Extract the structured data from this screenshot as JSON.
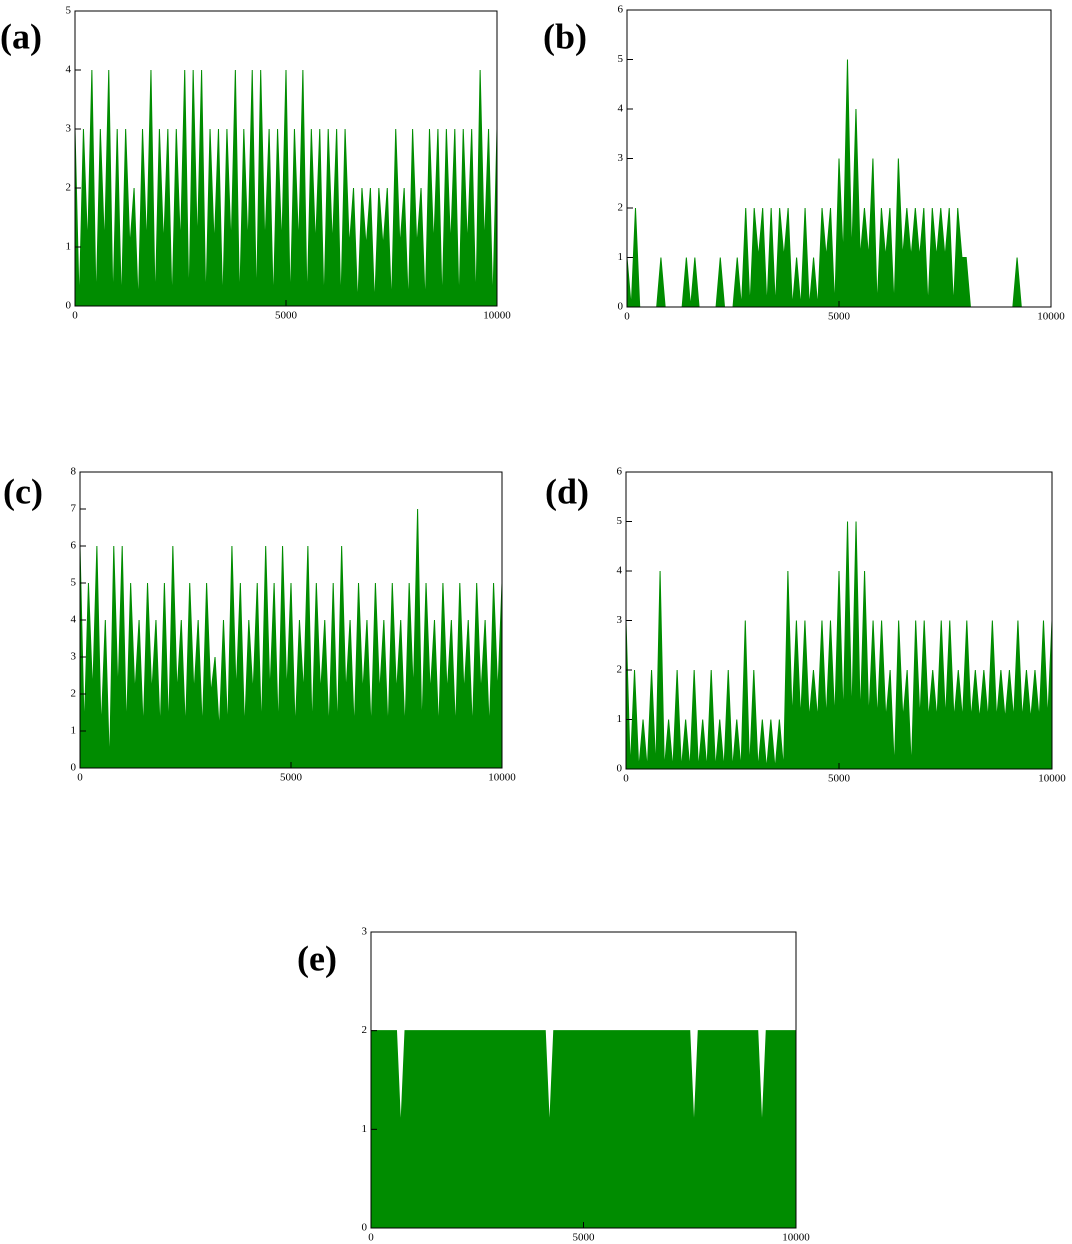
{
  "chart_data": [
    {
      "type": "line",
      "title": "(a)",
      "color": "#008c00",
      "x": [
        0,
        100,
        200,
        300,
        400,
        500,
        600,
        700,
        800,
        900,
        1000,
        1100,
        1200,
        1300,
        1400,
        1500,
        1600,
        1700,
        1800,
        1900,
        2000,
        2100,
        2200,
        2300,
        2400,
        2500,
        2600,
        2700,
        2800,
        2900,
        3000,
        3100,
        3200,
        3300,
        3400,
        3500,
        3600,
        3700,
        3800,
        3900,
        4000,
        4100,
        4200,
        4300,
        4400,
        4500,
        4600,
        4700,
        4800,
        4900,
        5000,
        5100,
        5200,
        5300,
        5400,
        5500,
        5600,
        5700,
        5800,
        5900,
        6000,
        6100,
        6200,
        6300,
        6400,
        6500,
        6600,
        6700,
        6800,
        6900,
        7000,
        7100,
        7200,
        7300,
        7400,
        7500,
        7600,
        7700,
        7800,
        7900,
        8000,
        8100,
        8200,
        8300,
        8400,
        8500,
        8600,
        8700,
        8800,
        8900,
        9000,
        9100,
        9200,
        9300,
        9400,
        9500,
        9600,
        9700,
        9800,
        9900,
        10000
      ],
      "values": [
        3,
        0,
        3,
        1,
        4,
        0,
        3,
        1,
        4,
        0,
        3,
        0,
        3,
        1,
        2,
        0,
        3,
        1,
        4,
        0,
        3,
        1,
        3,
        0,
        3,
        1,
        4,
        0,
        4,
        1,
        4,
        0,
        3,
        1,
        3,
        0,
        3,
        1,
        4,
        0,
        3,
        1,
        4,
        0,
        4,
        1,
        3,
        0,
        3,
        1,
        4,
        0,
        3,
        1,
        4,
        0,
        3,
        1,
        3,
        0,
        3,
        1,
        3,
        0,
        3,
        1,
        2,
        0,
        2,
        1,
        2,
        0,
        2,
        1,
        2,
        0,
        3,
        1,
        2,
        0,
        3,
        1,
        2,
        0,
        3,
        1,
        3,
        0,
        3,
        1,
        3,
        0,
        3,
        1,
        3,
        0,
        4,
        1,
        3,
        0,
        3
      ],
      "xlim": [
        0,
        10000
      ],
      "ylim": [
        0,
        5
      ],
      "xticks": [
        0,
        5000,
        10000
      ],
      "yticks": [
        0,
        1,
        2,
        3,
        4,
        5
      ]
    },
    {
      "type": "line",
      "title": "(b)",
      "color": "#008c00",
      "x": [
        0,
        100,
        200,
        300,
        400,
        500,
        600,
        700,
        800,
        900,
        1000,
        1100,
        1200,
        1300,
        1400,
        1500,
        1600,
        1700,
        1800,
        1900,
        2000,
        2100,
        2200,
        2300,
        2400,
        2500,
        2600,
        2700,
        2800,
        2900,
        3000,
        3100,
        3200,
        3300,
        3400,
        3500,
        3600,
        3700,
        3800,
        3900,
        4000,
        4100,
        4200,
        4300,
        4400,
        4500,
        4600,
        4700,
        4800,
        4900,
        5000,
        5100,
        5200,
        5300,
        5400,
        5500,
        5600,
        5700,
        5800,
        5900,
        6000,
        6100,
        6200,
        6300,
        6400,
        6500,
        6600,
        6700,
        6800,
        6900,
        7000,
        7100,
        7200,
        7300,
        7400,
        7500,
        7600,
        7700,
        7800,
        7900,
        8000,
        8100,
        8200,
        8300,
        8400,
        8500,
        8600,
        8700,
        8800,
        8900,
        9000,
        9100,
        9200,
        9300,
        9400,
        9500,
        9600,
        9700,
        9800,
        9900,
        10000
      ],
      "values": [
        1,
        0,
        2,
        0,
        0,
        0,
        0,
        0,
        1,
        0,
        0,
        0,
        0,
        0,
        1,
        0,
        1,
        0,
        0,
        0,
        0,
        0,
        1,
        0,
        0,
        0,
        1,
        0,
        2,
        0,
        2,
        1,
        2,
        0,
        2,
        0,
        2,
        1,
        2,
        0,
        1,
        0,
        2,
        0,
        1,
        0,
        2,
        1,
        2,
        0,
        3,
        1,
        5,
        1,
        4,
        1,
        2,
        1,
        3,
        0,
        2,
        1,
        2,
        0,
        3,
        1,
        2,
        1,
        2,
        1,
        2,
        0,
        2,
        1,
        2,
        1,
        2,
        0,
        2,
        1,
        1,
        0,
        0,
        0,
        0,
        0,
        0,
        0,
        0,
        0,
        0,
        0,
        1,
        0,
        0,
        0,
        0,
        0,
        0,
        0,
        0
      ],
      "xlim": [
        0,
        10000
      ],
      "ylim": [
        0,
        6
      ],
      "xticks": [
        0,
        5000,
        10000
      ],
      "yticks": [
        0,
        1,
        2,
        3,
        4,
        5,
        6
      ]
    },
    {
      "type": "line",
      "title": "(c)",
      "color": "#008c00",
      "x": [
        0,
        100,
        200,
        300,
        400,
        500,
        600,
        700,
        800,
        900,
        1000,
        1100,
        1200,
        1300,
        1400,
        1500,
        1600,
        1700,
        1800,
        1900,
        2000,
        2100,
        2200,
        2300,
        2400,
        2500,
        2600,
        2700,
        2800,
        2900,
        3000,
        3100,
        3200,
        3300,
        3400,
        3500,
        3600,
        3700,
        3800,
        3900,
        4000,
        4100,
        4200,
        4300,
        4400,
        4500,
        4600,
        4700,
        4800,
        4900,
        5000,
        5100,
        5200,
        5300,
        5400,
        5500,
        5600,
        5700,
        5800,
        5900,
        6000,
        6100,
        6200,
        6300,
        6400,
        6500,
        6600,
        6700,
        6800,
        6900,
        7000,
        7100,
        7200,
        7300,
        7400,
        7500,
        7600,
        7700,
        7800,
        7900,
        8000,
        8100,
        8200,
        8300,
        8400,
        8500,
        8600,
        8700,
        8800,
        8900,
        9000,
        9100,
        9200,
        9300,
        9400,
        9500,
        9600,
        9700,
        9800,
        9900,
        10000
      ],
      "values": [
        6,
        1,
        5,
        2,
        6,
        1,
        4,
        0,
        6,
        2,
        6,
        1,
        5,
        2,
        4,
        1,
        5,
        2,
        4,
        1,
        5,
        1,
        6,
        2,
        4,
        1,
        5,
        2,
        4,
        1,
        5,
        2,
        3,
        1,
        4,
        1,
        6,
        2,
        5,
        1,
        4,
        2,
        5,
        1,
        6,
        2,
        5,
        1,
        6,
        2,
        5,
        1,
        4,
        2,
        6,
        1,
        5,
        2,
        4,
        1,
        5,
        1,
        6,
        2,
        4,
        1,
        5,
        2,
        4,
        1,
        5,
        2,
        4,
        1,
        5,
        2,
        4,
        1,
        5,
        2,
        7,
        1,
        5,
        2,
        4,
        1,
        5,
        2,
        4,
        1,
        5,
        2,
        4,
        1,
        5,
        2,
        4,
        1,
        5,
        2,
        5
      ],
      "xlim": [
        0,
        10000
      ],
      "ylim": [
        0,
        8
      ],
      "xticks": [
        0,
        5000,
        10000
      ],
      "yticks": [
        0,
        1,
        2,
        3,
        4,
        5,
        6,
        7,
        8
      ]
    },
    {
      "type": "line",
      "title": "(d)",
      "color": "#008c00",
      "x": [
        0,
        100,
        200,
        300,
        400,
        500,
        600,
        700,
        800,
        900,
        1000,
        1100,
        1200,
        1300,
        1400,
        1500,
        1600,
        1700,
        1800,
        1900,
        2000,
        2100,
        2200,
        2300,
        2400,
        2500,
        2600,
        2700,
        2800,
        2900,
        3000,
        3100,
        3200,
        3300,
        3400,
        3500,
        3600,
        3700,
        3800,
        3900,
        4000,
        4100,
        4200,
        4300,
        4400,
        4500,
        4600,
        4700,
        4800,
        4900,
        5000,
        5100,
        5200,
        5300,
        5400,
        5500,
        5600,
        5700,
        5800,
        5900,
        6000,
        6100,
        6200,
        6300,
        6400,
        6500,
        6600,
        6700,
        6800,
        6900,
        7000,
        7100,
        7200,
        7300,
        7400,
        7500,
        7600,
        7700,
        7800,
        7900,
        8000,
        8100,
        8200,
        8300,
        8400,
        8500,
        8600,
        8700,
        8800,
        8900,
        9000,
        9100,
        9200,
        9300,
        9400,
        9500,
        9600,
        9700,
        9800,
        9900,
        10000
      ],
      "values": [
        3,
        0,
        2,
        0,
        1,
        0,
        2,
        0,
        4,
        0,
        1,
        0,
        2,
        0,
        1,
        0,
        2,
        0,
        1,
        0,
        2,
        0,
        1,
        0,
        2,
        0,
        1,
        0,
        3,
        0,
        2,
        0,
        1,
        0,
        1,
        0,
        1,
        0,
        4,
        1,
        3,
        1,
        3,
        1,
        2,
        1,
        3,
        1,
        3,
        1,
        4,
        1,
        5,
        1,
        5,
        1,
        4,
        1,
        3,
        1,
        3,
        1,
        2,
        0,
        3,
        1,
        2,
        0,
        3,
        1,
        3,
        1,
        2,
        1,
        3,
        1,
        3,
        1,
        2,
        1,
        3,
        1,
        2,
        1,
        2,
        1,
        3,
        1,
        2,
        1,
        2,
        1,
        3,
        1,
        2,
        1,
        2,
        1,
        3,
        1,
        3
      ],
      "xlim": [
        0,
        10000
      ],
      "ylim": [
        0,
        6
      ],
      "xticks": [
        0,
        5000,
        10000
      ],
      "yticks": [
        0,
        1,
        2,
        3,
        4,
        5,
        6
      ]
    },
    {
      "type": "line",
      "title": "(e)",
      "color": "#008c00",
      "x": [
        0,
        100,
        200,
        300,
        400,
        500,
        600,
        700,
        800,
        900,
        1000,
        1100,
        1200,
        1300,
        1400,
        1500,
        1600,
        1700,
        1800,
        1900,
        2000,
        2100,
        2200,
        2300,
        2400,
        2500,
        2600,
        2700,
        2800,
        2900,
        3000,
        3100,
        3200,
        3300,
        3400,
        3500,
        3600,
        3700,
        3800,
        3900,
        4000,
        4100,
        4200,
        4300,
        4400,
        4500,
        4600,
        4700,
        4800,
        4900,
        5000,
        5100,
        5200,
        5300,
        5400,
        5500,
        5600,
        5700,
        5800,
        5900,
        6000,
        6100,
        6200,
        6300,
        6400,
        6500,
        6600,
        6700,
        6800,
        6900,
        7000,
        7100,
        7200,
        7300,
        7400,
        7500,
        7600,
        7700,
        7800,
        7900,
        8000,
        8100,
        8200,
        8300,
        8400,
        8500,
        8600,
        8700,
        8800,
        8900,
        9000,
        9100,
        9200,
        9300,
        9400,
        9500,
        9600,
        9700,
        9800,
        9900,
        10000
      ],
      "values": [
        2,
        2,
        2,
        2,
        2,
        2,
        2,
        1,
        2,
        2,
        2,
        2,
        2,
        2,
        2,
        2,
        2,
        2,
        2,
        2,
        2,
        2,
        2,
        2,
        2,
        2,
        2,
        2,
        2,
        2,
        2,
        2,
        2,
        2,
        2,
        2,
        2,
        2,
        2,
        2,
        2,
        2,
        1,
        2,
        2,
        2,
        2,
        2,
        2,
        2,
        2,
        2,
        2,
        2,
        2,
        2,
        2,
        2,
        2,
        2,
        2,
        2,
        2,
        2,
        2,
        2,
        2,
        2,
        2,
        2,
        2,
        2,
        2,
        2,
        2,
        2,
        1,
        2,
        2,
        2,
        2,
        2,
        2,
        2,
        2,
        2,
        2,
        2,
        2,
        2,
        2,
        2,
        1,
        2,
        2,
        2,
        2,
        2,
        2,
        2,
        2
      ],
      "xlim": [
        0,
        10000
      ],
      "ylim": [
        0,
        3
      ],
      "xticks": [
        0,
        5000,
        10000
      ],
      "yticks": [
        0,
        1,
        2,
        3
      ]
    }
  ]
}
